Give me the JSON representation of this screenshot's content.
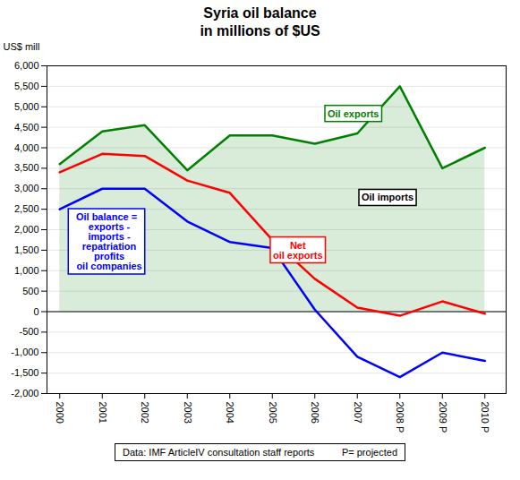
{
  "chart_data": {
    "type": "line",
    "title": "Syria oil balance\nin millions of $US",
    "ylabel": "US$ mill",
    "x": [
      2000,
      2001,
      2002,
      2003,
      2004,
      2005,
      2006,
      2007,
      2008,
      2009,
      2010
    ],
    "series": [
      {
        "name": "Oil exports",
        "color": "#008000",
        "type": "area",
        "values": [
          3600,
          4400,
          4550,
          3450,
          4300,
          4300,
          4100,
          4350,
          5500,
          3500,
          4000
        ]
      },
      {
        "name": "Net\noil exports",
        "color": "#ff0000",
        "type": "line",
        "values": [
          3400,
          3850,
          3800,
          3200,
          2900,
          1750,
          800,
          100,
          -100,
          250,
          -50
        ]
      },
      {
        "name": "Oil balance =\n  exports -\n  imports -\n  repatriation\n  profits\n  oil companies",
        "color": "#0000ff",
        "type": "line",
        "values": [
          2500,
          3000,
          3000,
          2200,
          1700,
          1550,
          50,
          -1100,
          -1600,
          -1000,
          -1200
        ]
      }
    ],
    "annotations": [
      "Oil imports"
    ],
    "footnote": "Data: IMF ArticleIV consultation staff reports          P= projected",
    "xlim": [
      1999.7,
      2010.5
    ],
    "xticks": [
      2000,
      2001,
      2002,
      2003,
      2004,
      2005,
      2006,
      2007,
      {
        "value": 2008,
        "label": "2008 P"
      },
      {
        "value": 2009,
        "label": "2009 P"
      },
      {
        "value": 2010,
        "label": "2010 P"
      }
    ],
    "ylim": [
      -2000,
      6000
    ],
    "yticks": [
      {
        "value": -2000,
        "label": "-2,000"
      },
      {
        "value": -1500,
        "label": "-1,500"
      },
      {
        "value": -1000,
        "label": "-1,000"
      },
      -500,
      0,
      500,
      {
        "value": 1000,
        "label": "1,000"
      },
      {
        "value": 1500,
        "label": "1,500"
      },
      {
        "value": 2000,
        "label": "2,000"
      },
      {
        "value": 2500,
        "label": "2,500"
      },
      {
        "value": 3000,
        "label": "3,000"
      },
      {
        "value": 3500,
        "label": "3,500"
      },
      {
        "value": 4000,
        "label": "4,000"
      },
      {
        "value": 4500,
        "label": "4,500"
      },
      {
        "value": 5000,
        "label": "5,000"
      },
      {
        "value": 5500,
        "label": "5,500"
      },
      {
        "value": 6000,
        "label": "6,000"
      }
    ],
    "grid": true
  }
}
